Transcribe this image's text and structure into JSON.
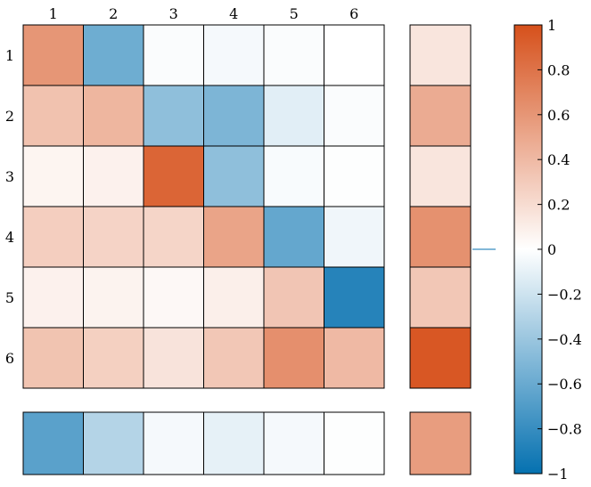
{
  "chart_data": {
    "type": "heatmap",
    "title": "",
    "xlabel": "",
    "ylabel": "",
    "x_labels": [
      "1",
      "2",
      "3",
      "4",
      "5",
      "6"
    ],
    "y_labels": [
      "1",
      "2",
      "3",
      "4",
      "5",
      "6"
    ],
    "matrix": [
      [
        0.6,
        -0.58,
        -0.02,
        -0.04,
        -0.02,
        0.0
      ],
      [
        0.35,
        0.42,
        -0.45,
        -0.52,
        -0.12,
        -0.02
      ],
      [
        0.06,
        0.08,
        0.88,
        -0.45,
        -0.03,
        -0.01
      ],
      [
        0.28,
        0.25,
        0.24,
        0.52,
        -0.62,
        -0.06
      ],
      [
        0.08,
        0.07,
        0.04,
        0.09,
        0.33,
        -0.87
      ],
      [
        0.34,
        0.27,
        0.16,
        0.32,
        0.64,
        0.4
      ]
    ],
    "row_summary": [
      0.15,
      0.48,
      0.15,
      0.63,
      0.32,
      0.96
    ],
    "column_summary": [
      -0.66,
      -0.3,
      -0.04,
      -0.1,
      -0.04,
      -0.01
    ],
    "corner_value": 0.56,
    "colorbar": {
      "range": [
        -1,
        1
      ],
      "ticks": [
        1,
        0.8,
        0.6,
        0.4,
        0.2,
        0,
        -0.2,
        -0.4,
        -0.6,
        -0.8,
        -1
      ],
      "tick_labels": [
        "1",
        "0.8",
        "0.6",
        "0.4",
        "0.2",
        "0",
        "−0.2",
        "−0.4",
        "−0.6",
        "−0.8",
        "−1"
      ],
      "marker_value": 0.0
    },
    "colors": {
      "negative": "#0571b0",
      "neutral": "#ffffff",
      "positive": "#d6501b"
    }
  }
}
